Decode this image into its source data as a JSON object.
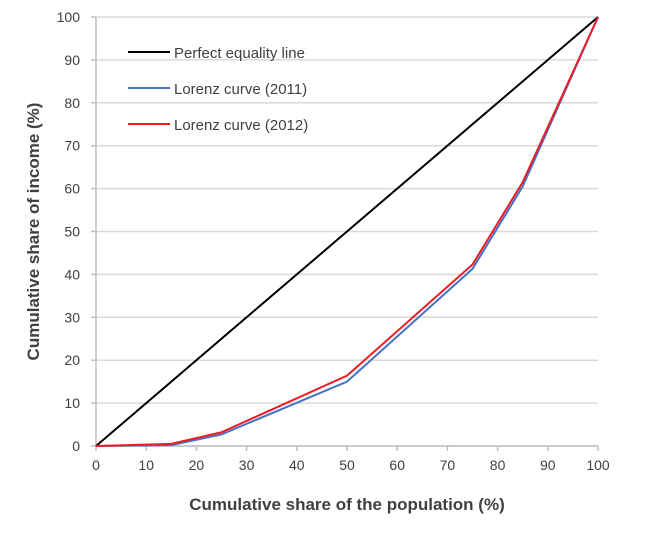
{
  "chart_data": {
    "type": "line",
    "title": "",
    "xlabel": "Cumulative share of the population (%)",
    "ylabel": "Cumulative share of income (%)",
    "xlim": [
      0,
      100
    ],
    "ylim": [
      0,
      100
    ],
    "xticks": [
      0,
      10,
      20,
      30,
      40,
      50,
      60,
      70,
      80,
      90,
      100
    ],
    "yticks": [
      0,
      10,
      20,
      30,
      40,
      50,
      60,
      70,
      80,
      90,
      100
    ],
    "grid": "horizontal",
    "legend_position": "top-left",
    "series": [
      {
        "name": "Perfect equality line",
        "color": "#000000",
        "x": [
          0,
          100
        ],
        "y": [
          0,
          100
        ]
      },
      {
        "name": "Lorenz curve (2011)",
        "color": "#4472c4",
        "x": [
          0,
          15,
          25,
          50,
          75,
          85,
          100
        ],
        "y": [
          0,
          0.2,
          2.7,
          15,
          41.3,
          60.5,
          100
        ]
      },
      {
        "name": "Lorenz curve (2012)",
        "color": "#ee1c25",
        "x": [
          0,
          15,
          25,
          50,
          75,
          85,
          100
        ],
        "y": [
          0,
          0.5,
          3.2,
          16.4,
          42.3,
          61.5,
          100
        ]
      }
    ]
  }
}
